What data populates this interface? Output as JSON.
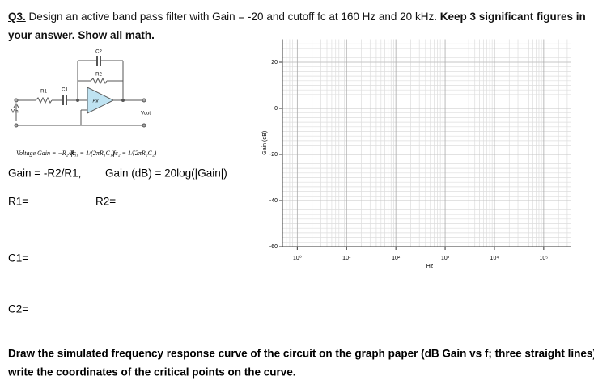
{
  "question": {
    "number": "Q3.",
    "text": "Design an active band pass filter with Gain = -20 and cutoff fc at 160 Hz and 20 kHz.",
    "emphasis": [
      "Keep 3 significant figures in",
      "your answer."
    ],
    "instruction": "Show all math."
  },
  "circuit": {
    "c2": "C2",
    "r2": "R2",
    "r1": "R1",
    "c1": "C1",
    "opamp": "Av",
    "vin": "Vin",
    "vout": "Vout"
  },
  "formulas": [
    "Voltage Gain = −R₂/R₁",
    "fc₁ = 1/(2πR₁C₁)",
    "fc₂ = 1/(2πR₂C₂)",
    "Gain = -R2/R1,",
    "Gain (dB) = 20log(|Gain|)"
  ],
  "answers": [
    "R1=",
    "R2=",
    "C1=",
    "C2="
  ],
  "graph": {
    "ylabel": "Gain (dB)",
    "xlabel": "Hz",
    "log_x": true,
    "grid": true,
    "ylim": [
      -60,
      30
    ],
    "yticks": [
      20,
      0,
      -20,
      -40,
      -60
    ],
    "xlim": [
      0.5,
      350000
    ],
    "xticks": [
      {
        "value": 1,
        "label": "10⁰"
      },
      {
        "value": 10,
        "label": "10¹"
      },
      {
        "value": 100,
        "label": "10²"
      },
      {
        "value": 1000,
        "label": "10³"
      },
      {
        "value": 10000,
        "label": "10⁴"
      },
      {
        "value": 100000,
        "label": "10⁵"
      }
    ]
  },
  "footer": [
    "Draw the simulated frequency response curve of the circuit on the graph paper (dB Gain vs f; three straight lines), and",
    "write the coordinates of the critical points on the curve."
  ]
}
